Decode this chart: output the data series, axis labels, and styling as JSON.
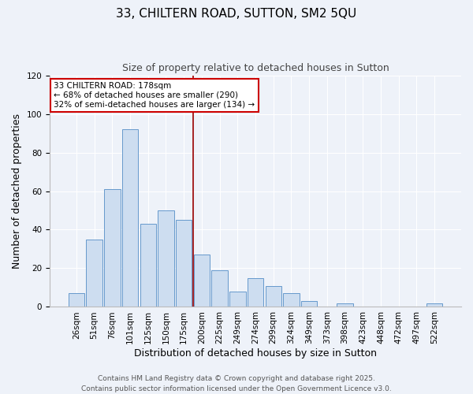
{
  "title": "33, CHILTERN ROAD, SUTTON, SM2 5QU",
  "subtitle": "Size of property relative to detached houses in Sutton",
  "xlabel": "Distribution of detached houses by size in Sutton",
  "ylabel": "Number of detached properties",
  "bar_labels": [
    "26sqm",
    "51sqm",
    "76sqm",
    "101sqm",
    "125sqm",
    "150sqm",
    "175sqm",
    "200sqm",
    "225sqm",
    "249sqm",
    "274sqm",
    "299sqm",
    "324sqm",
    "349sqm",
    "373sqm",
    "398sqm",
    "423sqm",
    "448sqm",
    "472sqm",
    "497sqm",
    "522sqm"
  ],
  "bar_values": [
    7,
    35,
    61,
    92,
    43,
    50,
    45,
    27,
    19,
    8,
    15,
    11,
    7,
    3,
    0,
    2,
    0,
    0,
    0,
    0,
    2
  ],
  "bar_color": "#cdddf0",
  "bar_edge_color": "#6699cc",
  "ylim": [
    0,
    120
  ],
  "yticks": [
    0,
    20,
    40,
    60,
    80,
    100,
    120
  ],
  "property_line_color": "#990000",
  "annotation_title": "33 CHILTERN ROAD: 178sqm",
  "annotation_line1": "← 68% of detached houses are smaller (290)",
  "annotation_line2": "32% of semi-detached houses are larger (134) →",
  "annotation_box_color": "#ffffff",
  "annotation_box_edge": "#cc0000",
  "footer1": "Contains HM Land Registry data © Crown copyright and database right 2025.",
  "footer2": "Contains public sector information licensed under the Open Government Licence v3.0.",
  "background_color": "#eef2f9",
  "grid_color": "#ffffff",
  "title_fontsize": 11,
  "subtitle_fontsize": 9,
  "axis_label_fontsize": 9,
  "tick_fontsize": 7.5,
  "annotation_fontsize": 7.5,
  "footer_fontsize": 6.5
}
